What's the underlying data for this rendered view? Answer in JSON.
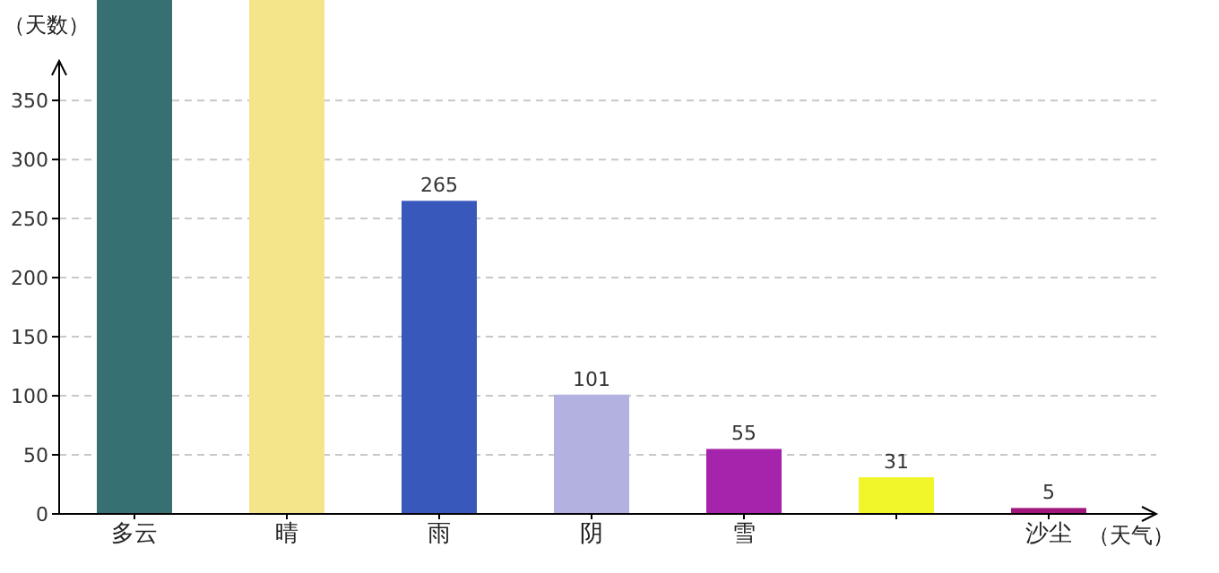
{
  "chart_data": {
    "type": "bar",
    "ylabel": "（天数）",
    "xlabel": "（天气）",
    "categories": [
      "多云",
      "晴",
      "雨",
      "阴",
      "雪",
      null,
      "沙尘"
    ],
    "values": [
      435,
      435,
      265,
      101,
      55,
      31,
      5
    ],
    "value_labels": [
      null,
      null,
      "265",
      "101",
      "55",
      "31",
      "5"
    ],
    "colors": [
      "#367072",
      "#f5e58a",
      "#3858bc",
      "#b3b1e0",
      "#a623ab",
      "#f0f62a",
      "#a0167a"
    ],
    "ylim": [
      0,
      435
    ],
    "yticks": [
      0,
      50,
      100,
      150,
      200,
      250,
      300,
      350
    ],
    "grid": "y"
  }
}
